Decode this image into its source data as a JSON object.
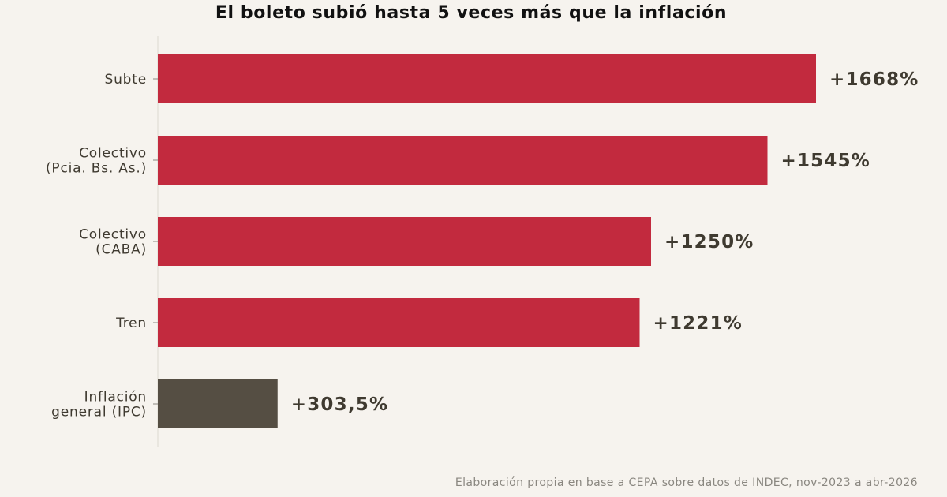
{
  "chart_data": {
    "type": "bar",
    "orientation": "horizontal",
    "title": "El boleto subió hasta 5 veces más que la inflación",
    "categories": [
      [
        "Subte"
      ],
      [
        "Colectivo",
        "(Pcia. Bs. As.)"
      ],
      [
        "Colectivo",
        "(CABA)"
      ],
      [
        "Tren"
      ],
      [
        "Inflación",
        "general (IPC)"
      ]
    ],
    "values": [
      1668,
      1545,
      1250,
      1221,
      303.5
    ],
    "value_labels": [
      "+1668%",
      "+1545%",
      "+1250%",
      "+1221%",
      "+303,5%"
    ],
    "colors": [
      "#c22a3e",
      "#c22a3e",
      "#c22a3e",
      "#c22a3e",
      "#554e43"
    ],
    "xlim": [
      0,
      1780
    ],
    "grid": false,
    "legend": "none"
  },
  "colors": {
    "background": "#f6f3ee",
    "transport": "#c22a3e",
    "inflation": "#554e43",
    "label_text": "#3f3a30"
  },
  "source_note": "Elaboración propia en base a CEPA sobre datos de INDEC, nov-2023 a abr-2026"
}
